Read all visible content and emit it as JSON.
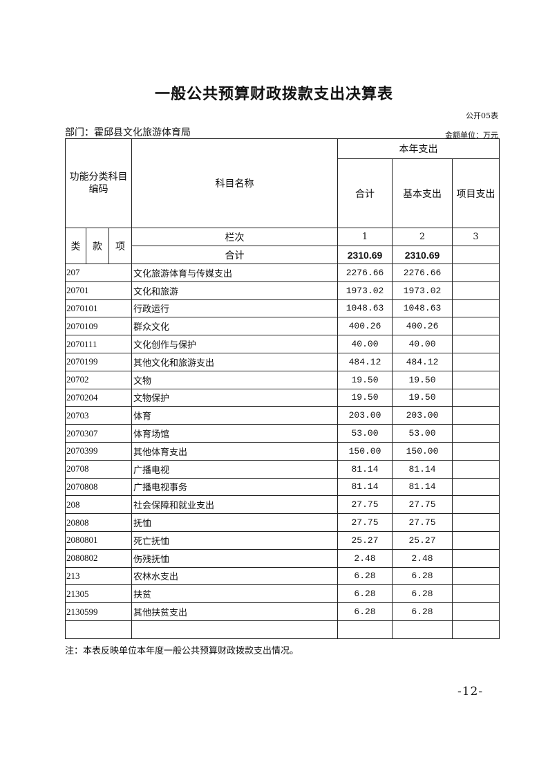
{
  "title": "一般公共预算财政拨款支出决算表",
  "form_no": "公开05表",
  "department": "部门：霍邱县文化旅游体育局",
  "unit": "金额单位：万元",
  "header": {
    "code": "功能分类科目编码",
    "name": "科目名称",
    "this_year": "本年支出",
    "total": "合计",
    "basic": "基本支出",
    "project": "项目支出",
    "lei": "类",
    "kuan": "款",
    "xiang": "项",
    "column_label": "栏次",
    "col1": "1",
    "col2": "2",
    "col3": "3",
    "sum_label": "合计",
    "sum_total": "2310.69",
    "sum_basic": "2310.69",
    "sum_project": ""
  },
  "rows": [
    {
      "code": "207",
      "name": "文化旅游体育与传媒支出",
      "total": "2276.66",
      "basic": "2276.66",
      "project": ""
    },
    {
      "code": "20701",
      "name": "文化和旅游",
      "total": "1973.02",
      "basic": "1973.02",
      "project": ""
    },
    {
      "code": "2070101",
      "name": "行政运行",
      "total": "1048.63",
      "basic": "1048.63",
      "project": ""
    },
    {
      "code": "2070109",
      "name": "群众文化",
      "total": "400.26",
      "basic": "400.26",
      "project": ""
    },
    {
      "code": "2070111",
      "name": "文化创作与保护",
      "total": "40.00",
      "basic": "40.00",
      "project": ""
    },
    {
      "code": "2070199",
      "name": "其他文化和旅游支出",
      "total": "484.12",
      "basic": "484.12",
      "project": ""
    },
    {
      "code": "20702",
      "name": "文物",
      "total": "19.50",
      "basic": "19.50",
      "project": ""
    },
    {
      "code": "2070204",
      "name": "文物保护",
      "total": "19.50",
      "basic": "19.50",
      "project": ""
    },
    {
      "code": "20703",
      "name": "体育",
      "total": "203.00",
      "basic": "203.00",
      "project": ""
    },
    {
      "code": "2070307",
      "name": "体育场馆",
      "total": "53.00",
      "basic": "53.00",
      "project": ""
    },
    {
      "code": "2070399",
      "name": "其他体育支出",
      "total": "150.00",
      "basic": "150.00",
      "project": ""
    },
    {
      "code": "20708",
      "name": "广播电视",
      "total": "81.14",
      "basic": "81.14",
      "project": ""
    },
    {
      "code": "2070808",
      "name": "广播电视事务",
      "total": "81.14",
      "basic": "81.14",
      "project": ""
    },
    {
      "code": "208",
      "name": "社会保障和就业支出",
      "total": "27.75",
      "basic": "27.75",
      "project": ""
    },
    {
      "code": "20808",
      "name": "抚恤",
      "total": "27.75",
      "basic": "27.75",
      "project": ""
    },
    {
      "code": "2080801",
      "name": "死亡抚恤",
      "total": "25.27",
      "basic": "25.27",
      "project": ""
    },
    {
      "code": "2080802",
      "name": "伤残抚恤",
      "total": "2.48",
      "basic": "2.48",
      "project": ""
    },
    {
      "code": "213",
      "name": "农林水支出",
      "total": "6.28",
      "basic": "6.28",
      "project": ""
    },
    {
      "code": "21305",
      "name": "扶贫",
      "total": "6.28",
      "basic": "6.28",
      "project": ""
    },
    {
      "code": "2130599",
      "name": "其他扶贫支出",
      "total": "6.28",
      "basic": "6.28",
      "project": ""
    },
    {
      "code": "",
      "name": "",
      "total": "",
      "basic": "",
      "project": ""
    }
  ],
  "note": "注：本表反映单位本年度一般公共预算财政拨款支出情况。",
  "page_number": "-12-"
}
